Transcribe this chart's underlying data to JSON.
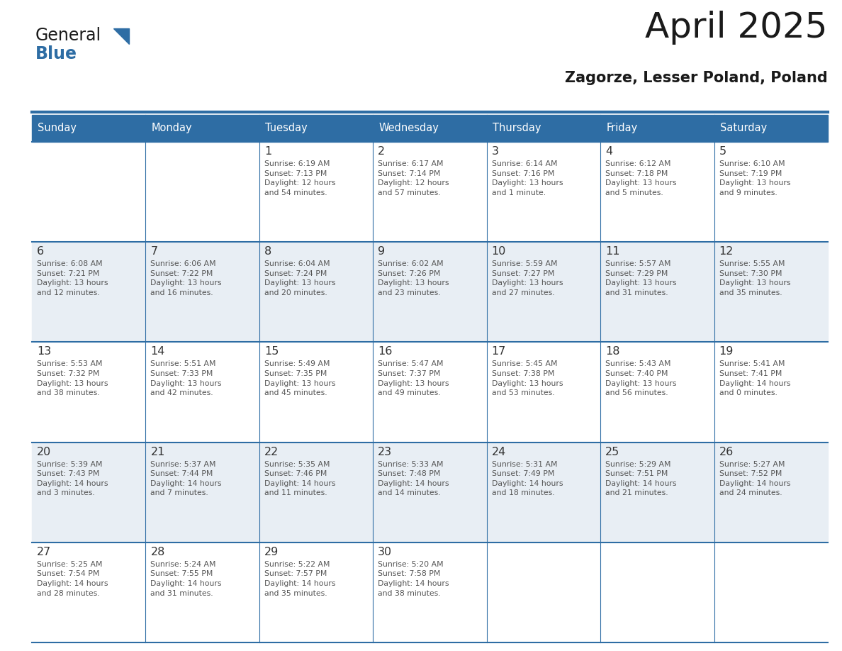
{
  "title": "April 2025",
  "subtitle": "Zagorze, Lesser Poland, Poland",
  "header_bg_color": "#2E6DA4",
  "header_text_color": "#FFFFFF",
  "row_bg_even": "#FFFFFF",
  "row_bg_odd": "#E8EEF4",
  "grid_line_color": "#2E6DA4",
  "day_number_color": "#333333",
  "cell_text_color": "#555555",
  "title_color": "#1a1a1a",
  "subtitle_color": "#1a1a1a",
  "logo_general_color": "#1a1a1a",
  "logo_blue_color": "#2E6DA4",
  "weekdays": [
    "Sunday",
    "Monday",
    "Tuesday",
    "Wednesday",
    "Thursday",
    "Friday",
    "Saturday"
  ],
  "weeks": [
    [
      {
        "day": null,
        "text": ""
      },
      {
        "day": null,
        "text": ""
      },
      {
        "day": 1,
        "text": "Sunrise: 6:19 AM\nSunset: 7:13 PM\nDaylight: 12 hours\nand 54 minutes."
      },
      {
        "day": 2,
        "text": "Sunrise: 6:17 AM\nSunset: 7:14 PM\nDaylight: 12 hours\nand 57 minutes."
      },
      {
        "day": 3,
        "text": "Sunrise: 6:14 AM\nSunset: 7:16 PM\nDaylight: 13 hours\nand 1 minute."
      },
      {
        "day": 4,
        "text": "Sunrise: 6:12 AM\nSunset: 7:18 PM\nDaylight: 13 hours\nand 5 minutes."
      },
      {
        "day": 5,
        "text": "Sunrise: 6:10 AM\nSunset: 7:19 PM\nDaylight: 13 hours\nand 9 minutes."
      }
    ],
    [
      {
        "day": 6,
        "text": "Sunrise: 6:08 AM\nSunset: 7:21 PM\nDaylight: 13 hours\nand 12 minutes."
      },
      {
        "day": 7,
        "text": "Sunrise: 6:06 AM\nSunset: 7:22 PM\nDaylight: 13 hours\nand 16 minutes."
      },
      {
        "day": 8,
        "text": "Sunrise: 6:04 AM\nSunset: 7:24 PM\nDaylight: 13 hours\nand 20 minutes."
      },
      {
        "day": 9,
        "text": "Sunrise: 6:02 AM\nSunset: 7:26 PM\nDaylight: 13 hours\nand 23 minutes."
      },
      {
        "day": 10,
        "text": "Sunrise: 5:59 AM\nSunset: 7:27 PM\nDaylight: 13 hours\nand 27 minutes."
      },
      {
        "day": 11,
        "text": "Sunrise: 5:57 AM\nSunset: 7:29 PM\nDaylight: 13 hours\nand 31 minutes."
      },
      {
        "day": 12,
        "text": "Sunrise: 5:55 AM\nSunset: 7:30 PM\nDaylight: 13 hours\nand 35 minutes."
      }
    ],
    [
      {
        "day": 13,
        "text": "Sunrise: 5:53 AM\nSunset: 7:32 PM\nDaylight: 13 hours\nand 38 minutes."
      },
      {
        "day": 14,
        "text": "Sunrise: 5:51 AM\nSunset: 7:33 PM\nDaylight: 13 hours\nand 42 minutes."
      },
      {
        "day": 15,
        "text": "Sunrise: 5:49 AM\nSunset: 7:35 PM\nDaylight: 13 hours\nand 45 minutes."
      },
      {
        "day": 16,
        "text": "Sunrise: 5:47 AM\nSunset: 7:37 PM\nDaylight: 13 hours\nand 49 minutes."
      },
      {
        "day": 17,
        "text": "Sunrise: 5:45 AM\nSunset: 7:38 PM\nDaylight: 13 hours\nand 53 minutes."
      },
      {
        "day": 18,
        "text": "Sunrise: 5:43 AM\nSunset: 7:40 PM\nDaylight: 13 hours\nand 56 minutes."
      },
      {
        "day": 19,
        "text": "Sunrise: 5:41 AM\nSunset: 7:41 PM\nDaylight: 14 hours\nand 0 minutes."
      }
    ],
    [
      {
        "day": 20,
        "text": "Sunrise: 5:39 AM\nSunset: 7:43 PM\nDaylight: 14 hours\nand 3 minutes."
      },
      {
        "day": 21,
        "text": "Sunrise: 5:37 AM\nSunset: 7:44 PM\nDaylight: 14 hours\nand 7 minutes."
      },
      {
        "day": 22,
        "text": "Sunrise: 5:35 AM\nSunset: 7:46 PM\nDaylight: 14 hours\nand 11 minutes."
      },
      {
        "day": 23,
        "text": "Sunrise: 5:33 AM\nSunset: 7:48 PM\nDaylight: 14 hours\nand 14 minutes."
      },
      {
        "day": 24,
        "text": "Sunrise: 5:31 AM\nSunset: 7:49 PM\nDaylight: 14 hours\nand 18 minutes."
      },
      {
        "day": 25,
        "text": "Sunrise: 5:29 AM\nSunset: 7:51 PM\nDaylight: 14 hours\nand 21 minutes."
      },
      {
        "day": 26,
        "text": "Sunrise: 5:27 AM\nSunset: 7:52 PM\nDaylight: 14 hours\nand 24 minutes."
      }
    ],
    [
      {
        "day": 27,
        "text": "Sunrise: 5:25 AM\nSunset: 7:54 PM\nDaylight: 14 hours\nand 28 minutes."
      },
      {
        "day": 28,
        "text": "Sunrise: 5:24 AM\nSunset: 7:55 PM\nDaylight: 14 hours\nand 31 minutes."
      },
      {
        "day": 29,
        "text": "Sunrise: 5:22 AM\nSunset: 7:57 PM\nDaylight: 14 hours\nand 35 minutes."
      },
      {
        "day": 30,
        "text": "Sunrise: 5:20 AM\nSunset: 7:58 PM\nDaylight: 14 hours\nand 38 minutes."
      },
      {
        "day": null,
        "text": ""
      },
      {
        "day": null,
        "text": ""
      },
      {
        "day": null,
        "text": ""
      }
    ]
  ],
  "fig_width": 11.88,
  "fig_height": 9.18,
  "dpi": 100
}
